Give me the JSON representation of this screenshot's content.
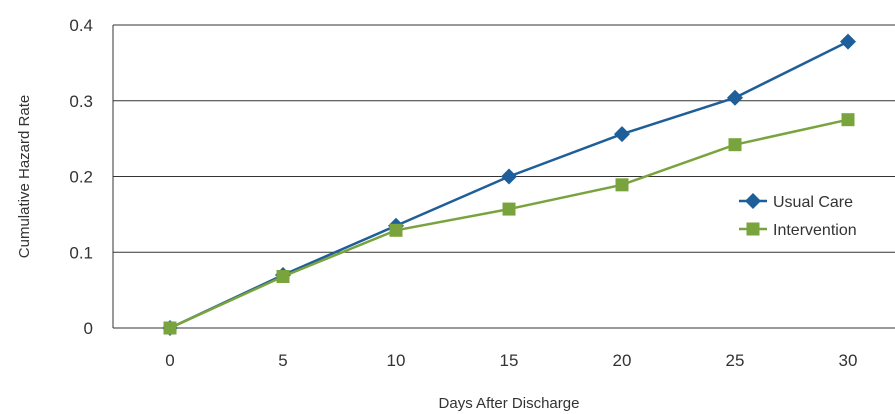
{
  "chart_data": {
    "type": "line",
    "xlabel": "Days After Discharge",
    "ylabel": "Cumulative Hazard Rate",
    "x": [
      0,
      5,
      10,
      15,
      20,
      25,
      30
    ],
    "x_tick_labels": [
      "0",
      "5",
      "10",
      "15",
      "20",
      "25",
      "30"
    ],
    "y_tick_labels": [
      "0",
      "0.1",
      "0.2",
      "0.3",
      "0.4"
    ],
    "xlim": [
      0,
      30
    ],
    "ylim": [
      0,
      0.4
    ],
    "grid": "horizontal",
    "legend_position": "right",
    "series": [
      {
        "name": "Usual Care",
        "values": [
          0.0,
          0.07,
          0.135,
          0.2,
          0.256,
          0.304,
          0.378
        ],
        "color": "#1f5f99",
        "marker": "diamond"
      },
      {
        "name": "Intervention",
        "values": [
          0.0,
          0.068,
          0.129,
          0.157,
          0.189,
          0.242,
          0.275
        ],
        "color": "#79a33d",
        "marker": "square"
      }
    ]
  }
}
